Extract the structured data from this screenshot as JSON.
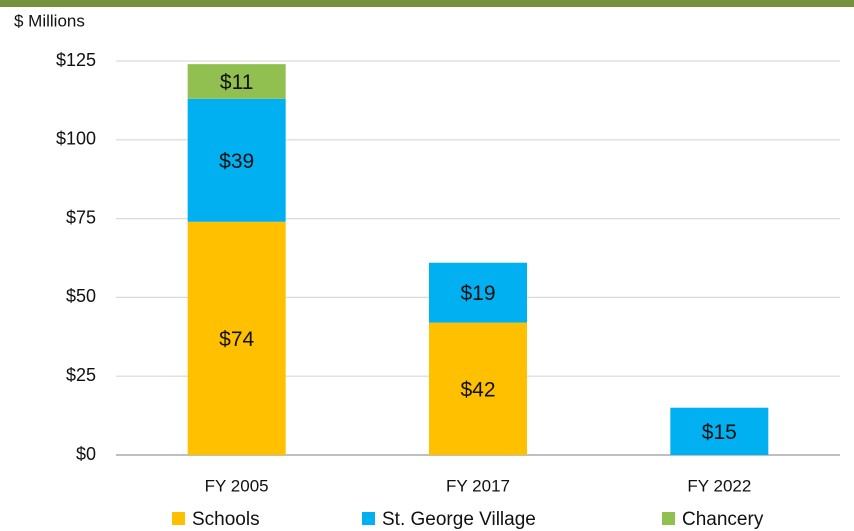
{
  "chart_data": {
    "type": "stacked_bar",
    "y_axis_label": "$ Millions",
    "categories": [
      "FY 2005",
      "FY 2017",
      "FY 2022"
    ],
    "series": [
      {
        "name": "Schools",
        "color": "#ffc000",
        "values": [
          74,
          42,
          null
        ],
        "value_labels": [
          "$74",
          "$42",
          null
        ]
      },
      {
        "name": "St. George Village",
        "color": "#00b0f0",
        "values": [
          39,
          19,
          15
        ],
        "value_labels": [
          "$39",
          "$19",
          "$15"
        ]
      },
      {
        "name": "Chancery",
        "color": "#92c050",
        "values": [
          11,
          null,
          null
        ],
        "value_labels": [
          "$11",
          null,
          null
        ]
      }
    ],
    "ylim": [
      0,
      125
    ],
    "yticks": [
      {
        "value": 0,
        "label": "$0"
      },
      {
        "value": 25,
        "label": "$25"
      },
      {
        "value": 50,
        "label": "$50"
      },
      {
        "value": 75,
        "label": "$75"
      },
      {
        "value": 100,
        "label": "$100"
      },
      {
        "value": 125,
        "label": "$125"
      }
    ],
    "grid": true,
    "legend": "bottom"
  }
}
